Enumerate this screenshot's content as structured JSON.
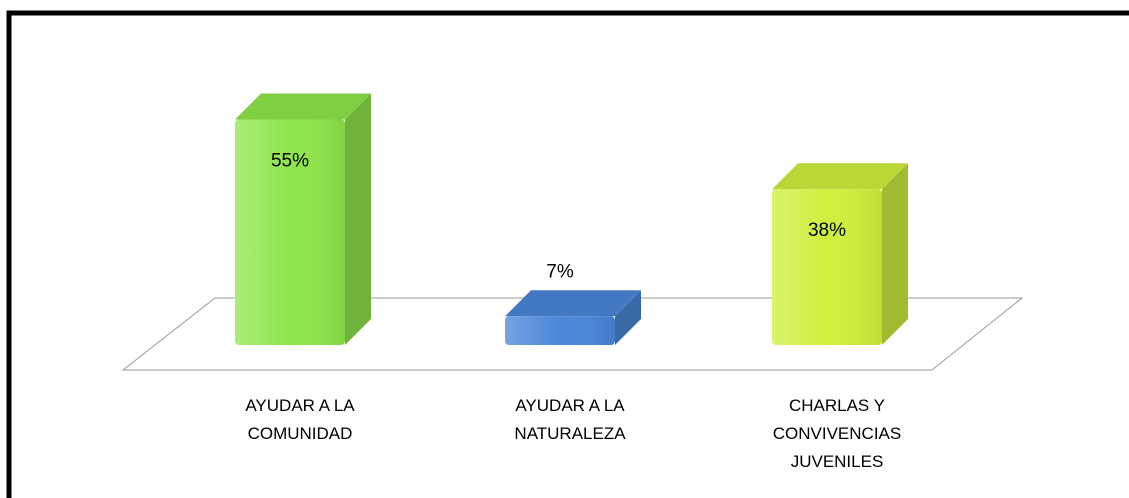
{
  "chart_data": {
    "type": "bar3d",
    "categories": [
      "AYUDAR A LA COMUNIDAD",
      "AYUDAR A LA NATURALEZA",
      "CHARLAS Y CONVIVENCIAS JUVENILES"
    ],
    "values": [
      55,
      7,
      38
    ],
    "value_labels": [
      "55%",
      "7%",
      "38%"
    ],
    "colors": [
      "#8ee64a",
      "#4a86d8",
      "#cdf03c"
    ]
  }
}
